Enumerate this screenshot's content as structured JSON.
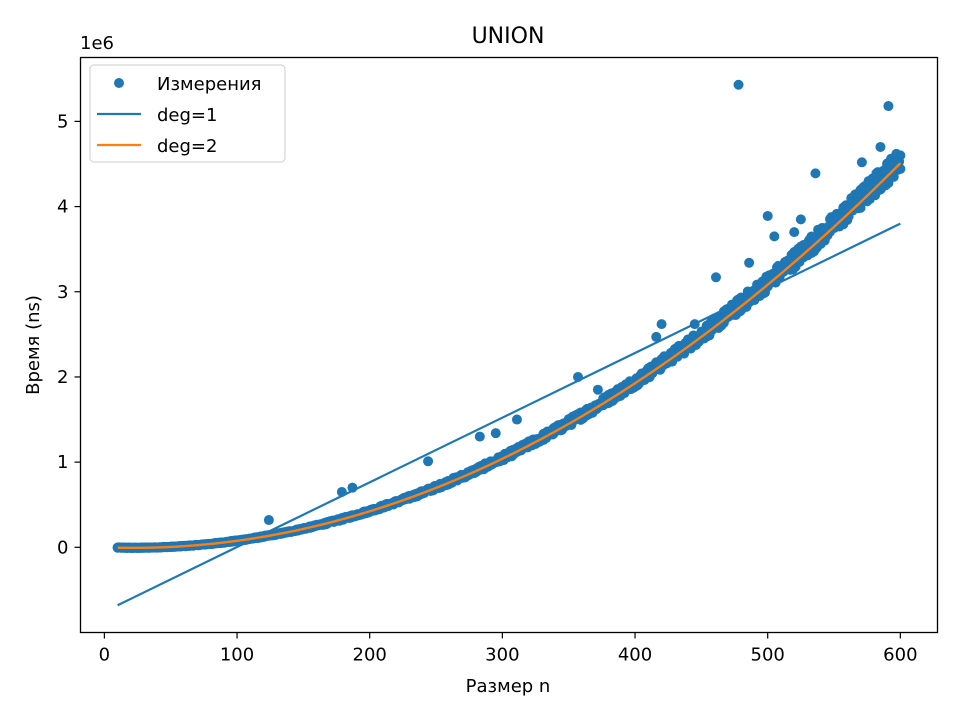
{
  "chart_data": {
    "type": "scatter",
    "title": "UNION",
    "xlabel": "Размер n",
    "ylabel": "Время (ns)",
    "y_offset_label": "1e6",
    "xlim": [
      -18,
      628
    ],
    "ylim": [
      -1000000,
      5750000
    ],
    "x_ticks": [
      0,
      100,
      200,
      300,
      400,
      500,
      600
    ],
    "y_ticks": [
      0,
      1000000,
      2000000,
      3000000,
      4000000,
      5000000
    ],
    "x_tick_labels": [
      "0",
      "100",
      "200",
      "300",
      "400",
      "500",
      "600"
    ],
    "y_tick_labels": [
      "0",
      "1",
      "2",
      "3",
      "4",
      "5"
    ],
    "grid": false,
    "legend_position": "top-left",
    "legend": [
      "Измерения",
      "deg=1",
      "deg=2"
    ],
    "series": [
      {
        "name": "Измерения",
        "kind": "scatter",
        "color": "#1f77b4",
        "x_range": [
          10,
          600
        ],
        "model": "quadratic",
        "coefficients": [
          13.5,
          -585,
          0
        ],
        "outliers": [
          {
            "x": 478,
            "y": 5430000
          },
          {
            "x": 591,
            "y": 5180000
          },
          {
            "x": 536,
            "y": 4390000
          },
          {
            "x": 585,
            "y": 4700000
          },
          {
            "x": 571,
            "y": 4520000
          },
          {
            "x": 500,
            "y": 3890000
          },
          {
            "x": 525,
            "y": 3850000
          },
          {
            "x": 520,
            "y": 3700000
          },
          {
            "x": 505,
            "y": 3650000
          },
          {
            "x": 486,
            "y": 3340000
          },
          {
            "x": 461,
            "y": 3170000
          },
          {
            "x": 420,
            "y": 2620000
          },
          {
            "x": 445,
            "y": 2620000
          },
          {
            "x": 416,
            "y": 2470000
          },
          {
            "x": 357,
            "y": 2000000
          },
          {
            "x": 372,
            "y": 1850000
          },
          {
            "x": 311,
            "y": 1500000
          },
          {
            "x": 283,
            "y": 1300000
          },
          {
            "x": 295,
            "y": 1340000
          },
          {
            "x": 244,
            "y": 1010000
          },
          {
            "x": 187,
            "y": 700000
          },
          {
            "x": 179,
            "y": 650000
          },
          {
            "x": 124,
            "y": 320000
          }
        ]
      },
      {
        "name": "deg=1",
        "kind": "line",
        "color": "#1f77b4",
        "x": [
          10,
          600
        ],
        "y": [
          -680000,
          3800000
        ]
      },
      {
        "name": "deg=2",
        "kind": "line",
        "color": "#ff7f0e",
        "x_range": [
          10,
          600
        ],
        "coefficients": [
          13.5,
          -585,
          0
        ]
      }
    ]
  }
}
